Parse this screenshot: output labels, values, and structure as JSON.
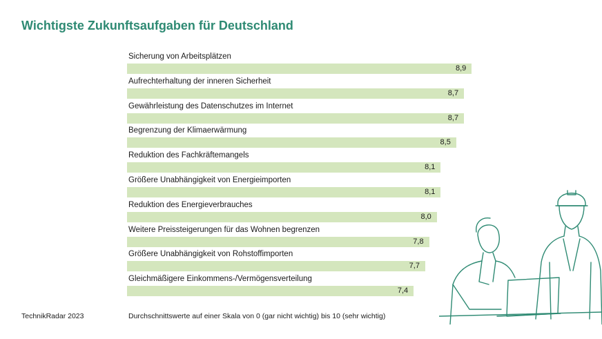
{
  "chart_data": {
    "type": "bar",
    "orientation": "horizontal",
    "title": "Wichtigste Zukunftsaufgaben für Deutschland",
    "categories": [
      "Sicherung von Arbeitsplätzen",
      "Aufrechterhaltung der inneren Sicherheit",
      "Gewährleistung des Datenschutzes im Internet",
      "Begrenzung der Klimaerwärmung",
      "Reduktion des Fachkräftemangels",
      "Größere Unabhängigkeit von Energieimporten",
      "Reduktion des Energieverbrauches",
      "Weitere Preissteigerungen für das Wohnen begrenzen",
      "Größere Unabhängigkeit von Rohstoffimporten",
      "Gleichmäßigere Einkommens-/Vermögensverteilung"
    ],
    "values": [
      8.9,
      8.7,
      8.7,
      8.5,
      8.1,
      8.1,
      8.0,
      7.8,
      7.7,
      7.4
    ],
    "value_labels": [
      "8,9",
      "8,7",
      "8,7",
      "8,5",
      "8,1",
      "8,1",
      "8,0",
      "7,8",
      "7,7",
      "7,4"
    ],
    "xlim": [
      0,
      10
    ],
    "grid": false,
    "legend": "none",
    "bar_color": "#d4e6bd"
  },
  "footer": {
    "source": "TechnikRadar 2023",
    "note": "Durchschnittswerte auf einer Skala von 0 (gar nicht wichtig) bis 10 (sehr wichtig)"
  },
  "colors": {
    "title": "#2e8a73",
    "illustration": "#2e8a73"
  }
}
